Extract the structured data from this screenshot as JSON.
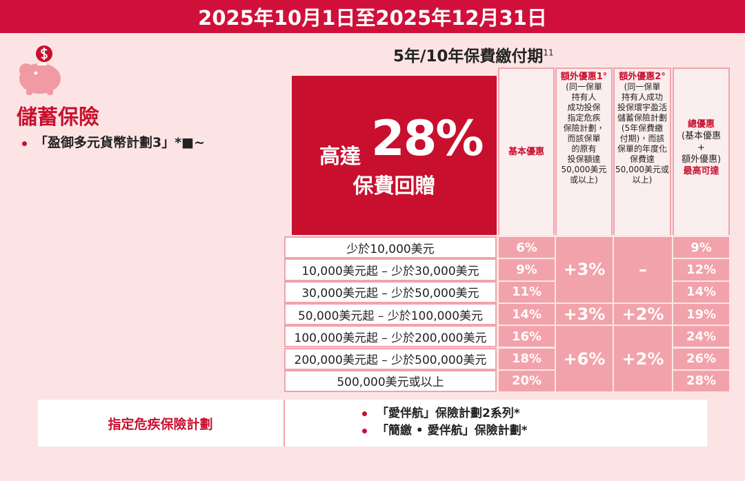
{
  "header": {
    "date_range": "2025年10月1日至2025年12月31日"
  },
  "category": {
    "title": "儲蓄保險",
    "plan": "「盈御多元貨幣計劃3」*■~"
  },
  "period": {
    "title": "5年/10年保費繳付期",
    "note": "11"
  },
  "hero": {
    "prefix": "高達",
    "rate": "28%",
    "caption": "保費回贈"
  },
  "columns": {
    "base": {
      "title": "基本優惠"
    },
    "extra_1": {
      "title": "額外優惠1°",
      "lines": [
        "(同一保單",
        "持有人",
        "成功投保",
        "指定危疾",
        "保險計劃，",
        "而該保單",
        "的原有",
        "投保額達",
        "50,000美元",
        "或以上)"
      ]
    },
    "extra_2": {
      "title": "額外優惠2°",
      "lines": [
        "(同一保單",
        "持有人成功",
        "投保環宇盈活",
        "儲蓄保險計劃",
        "(5年保費繳",
        "付期)，而該",
        "保單的年度化",
        "保費達",
        "50,000美元或",
        "以上)"
      ]
    },
    "total": {
      "lines": [
        "總優惠",
        "(基本優惠",
        "+",
        "額外優惠)",
        "最高可達"
      ]
    }
  },
  "table": {
    "tiers": [
      "少於10,000美元",
      "10,000美元起 – 少於30,000美元",
      "30,000美元起 – 少於50,000美元",
      "50,000美元起 – 少於100,000美元",
      "100,000美元起 – 少於200,000美元",
      "200,000美元起 – 少於500,000美元",
      "500,000美元或以上"
    ],
    "base": [
      "6%",
      "9%",
      "11%",
      "14%",
      "16%",
      "18%",
      "20%"
    ],
    "extra_1": [
      "+3%",
      "+3%",
      "+6%"
    ],
    "extra_2": [
      "–",
      "+2%",
      "+2%"
    ],
    "total": [
      "9%",
      "12%",
      "14%",
      "19%",
      "24%",
      "26%",
      "28%"
    ]
  },
  "footer": {
    "label": "指定危疾保險計劃",
    "plans": [
      "「愛伴航」保險計劃2系列*",
      "「簡繳 • 愛伴航」保險計劃*"
    ]
  }
}
